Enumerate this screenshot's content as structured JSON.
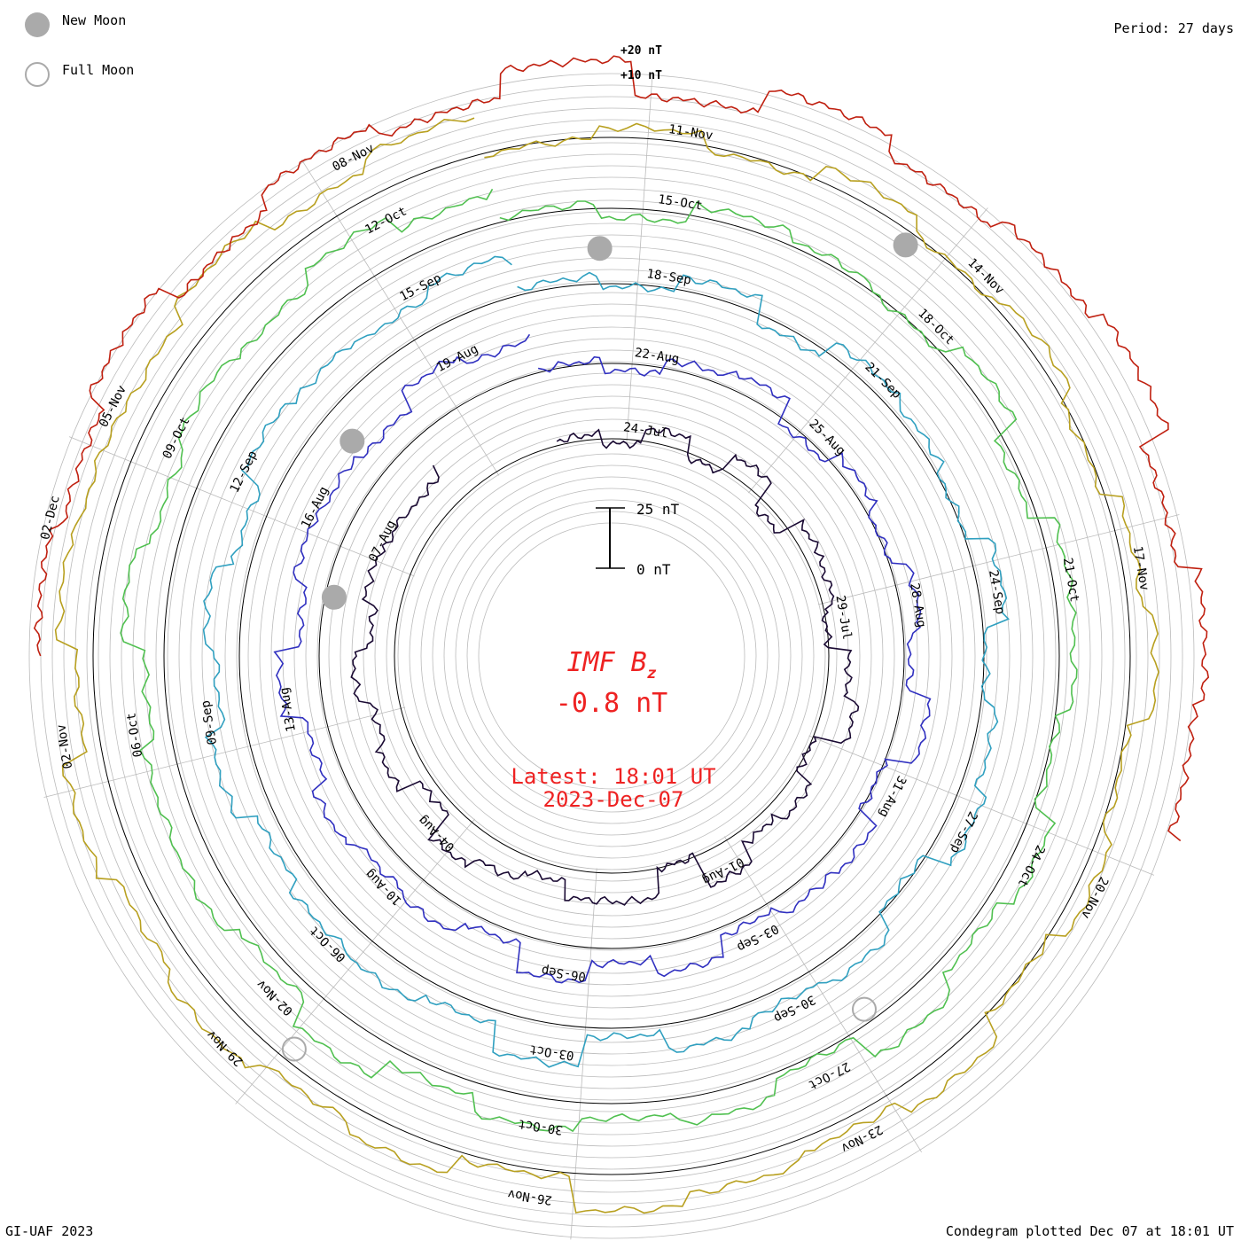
{
  "legend": {
    "new_moon_label": "New Moon",
    "full_moon_label": "Full Moon",
    "period_label": "Period: 27 days"
  },
  "footer": {
    "credit": "GI-UAF 2023",
    "plotted": "Condegram plotted Dec 07 at 18:01 UT"
  },
  "colors": {
    "accent": "#ee2222",
    "grid": "#bbbbbb",
    "new_moon": "#aaaaaa",
    "full_moon_outline": "#aaaaaa"
  },
  "chart_data": {
    "type": "line",
    "chart_style": "condegram spiral",
    "title": "IMF B",
    "title_subscript": "z",
    "current_value": "-0.8 nT",
    "latest_label": "Latest: 18:01 UT",
    "latest_date": "2023-Dec-07",
    "scale_bar": {
      "top_label": "25 nT",
      "bottom_label": "0 nT",
      "span_nT": 25
    },
    "ring_labels": [
      "+20 nT",
      "+10 nT"
    ],
    "period_days": 27,
    "series": [
      {
        "color": "#1a0a33",
        "date_labels": [
          "24-Jul",
          "29-Jul",
          "01-Aug",
          "04-Aug",
          "07-Aug"
        ],
        "values": [
          2,
          -3,
          5,
          -4,
          6,
          -8,
          3,
          1,
          -5,
          4,
          9,
          -6,
          2,
          -2,
          7,
          -9,
          4,
          3,
          -4,
          1,
          6,
          -7,
          3,
          -1,
          5,
          -3,
          2,
          0,
          -2,
          4
        ]
      },
      {
        "color": "#3030c0",
        "date_labels": [
          "22-Aug",
          "25-Aug",
          "28-Aug",
          "31-Aug",
          "03-Sep",
          "06-Sep",
          "10-Aug",
          "13-Aug",
          "16-Aug",
          "19-Aug"
        ],
        "values": [
          1,
          -4,
          3,
          6,
          -5,
          2,
          -3,
          4,
          -2,
          8,
          -6,
          3,
          1,
          -4,
          5,
          -2,
          7,
          -5,
          2,
          -1,
          4,
          -3,
          6,
          -4,
          2,
          0,
          -3,
          5,
          -1,
          3
        ]
      },
      {
        "color": "#30a0c0",
        "date_labels": [
          "18-Sep",
          "21-Sep",
          "24-Sep",
          "27-Sep",
          "30-Sep",
          "03-Oct",
          "06-Oct",
          "09-Sep",
          "12-Sep",
          "15-Sep"
        ],
        "values": [
          3,
          -2,
          5,
          -6,
          4,
          1,
          -3,
          7,
          -4,
          2,
          6,
          -8,
          3,
          -1,
          4,
          -5,
          9,
          -3,
          2,
          0,
          -4,
          5,
          -2,
          3,
          -6,
          4,
          1,
          -2,
          3,
          0
        ]
      },
      {
        "color": "#50c050",
        "date_labels": [
          "15-Oct",
          "18-Oct",
          "21-Oct",
          "24-Oct",
          "27-Oct",
          "30-Oct",
          "02-Nov",
          "06-Oct",
          "09-Oct",
          "12-Oct"
        ],
        "values": [
          2,
          -5,
          4,
          1,
          -3,
          6,
          -7,
          3,
          2,
          -4,
          5,
          -1,
          8,
          -6,
          3,
          -2,
          4,
          -3,
          7,
          -5,
          2,
          1,
          -4,
          6,
          -2,
          3,
          -1,
          5,
          -3,
          1
        ]
      },
      {
        "color": "#b8a020",
        "date_labels": [
          "11-Nov",
          "14-Nov",
          "17-Nov",
          "20-Nov",
          "23-Nov",
          "26-Nov",
          "29-Nov",
          "02-Nov",
          "05-Nov",
          "08-Nov"
        ],
        "values": [
          -1,
          4,
          -3,
          6,
          -2,
          3,
          -5,
          2,
          7,
          -4,
          1,
          -6,
          5,
          -2,
          3,
          8,
          -7,
          2,
          -3,
          4,
          -1,
          6,
          -5,
          3,
          0,
          -2,
          4,
          -4,
          2,
          1
        ]
      },
      {
        "color": "#c02010",
        "date_labels": [
          "02-Dec"
        ],
        "values": [
          3,
          -2,
          6,
          -5,
          4,
          -3,
          9,
          -8,
          5,
          -4,
          2,
          7,
          -6,
          3,
          -1,
          4
        ]
      }
    ]
  }
}
